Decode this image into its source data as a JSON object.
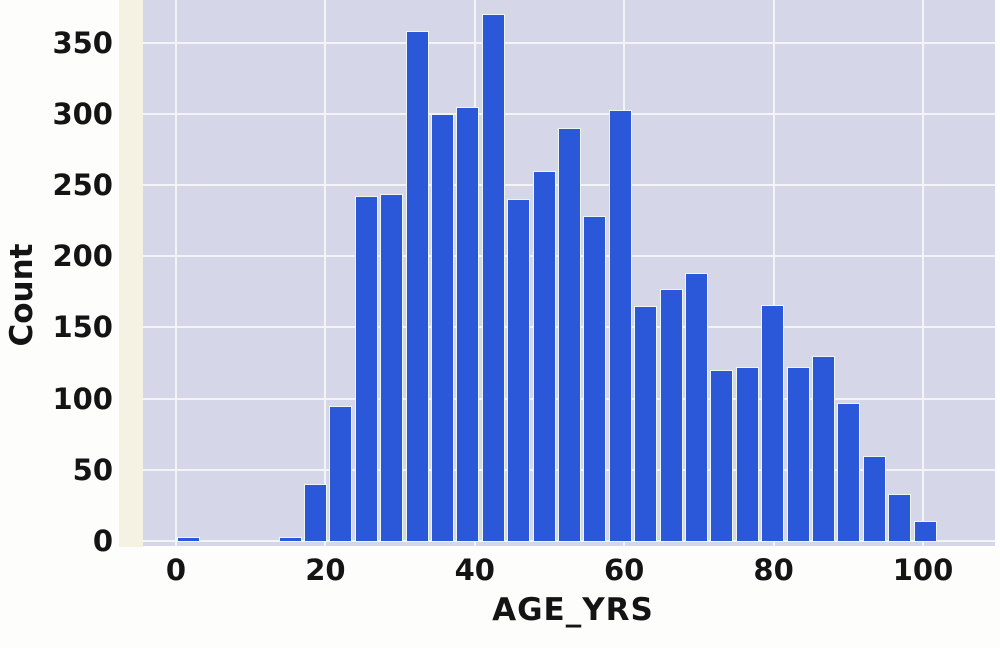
{
  "chart_data": {
    "type": "bar",
    "subtype": "histogram",
    "title": "",
    "xlabel": "AGE_YRS",
    "ylabel": "Count",
    "bin_start": 0,
    "bin_width": 3.4,
    "counts": [
      3,
      0,
      0,
      0,
      3,
      40,
      95,
      242,
      244,
      358,
      300,
      305,
      370,
      240,
      260,
      290,
      228,
      303,
      165,
      177,
      188,
      120,
      122,
      166,
      122,
      130,
      97,
      60,
      33,
      14
    ],
    "x_ticks": [
      0,
      20,
      40,
      60,
      80,
      100
    ],
    "y_ticks": [
      0,
      50,
      100,
      150,
      200,
      250,
      300,
      350
    ],
    "xlim": [
      -4.4,
      109.7
    ],
    "ylim": [
      0,
      380
    ],
    "grid": true,
    "legend": "none",
    "colors": {
      "bar_fill": "#2b58d8",
      "bar_edge": "#eef6f0",
      "plot_background": "#d5d6e7",
      "gridline": "#f3f4f6",
      "text": "#141414",
      "figure_background": "#fdfdfb"
    }
  }
}
